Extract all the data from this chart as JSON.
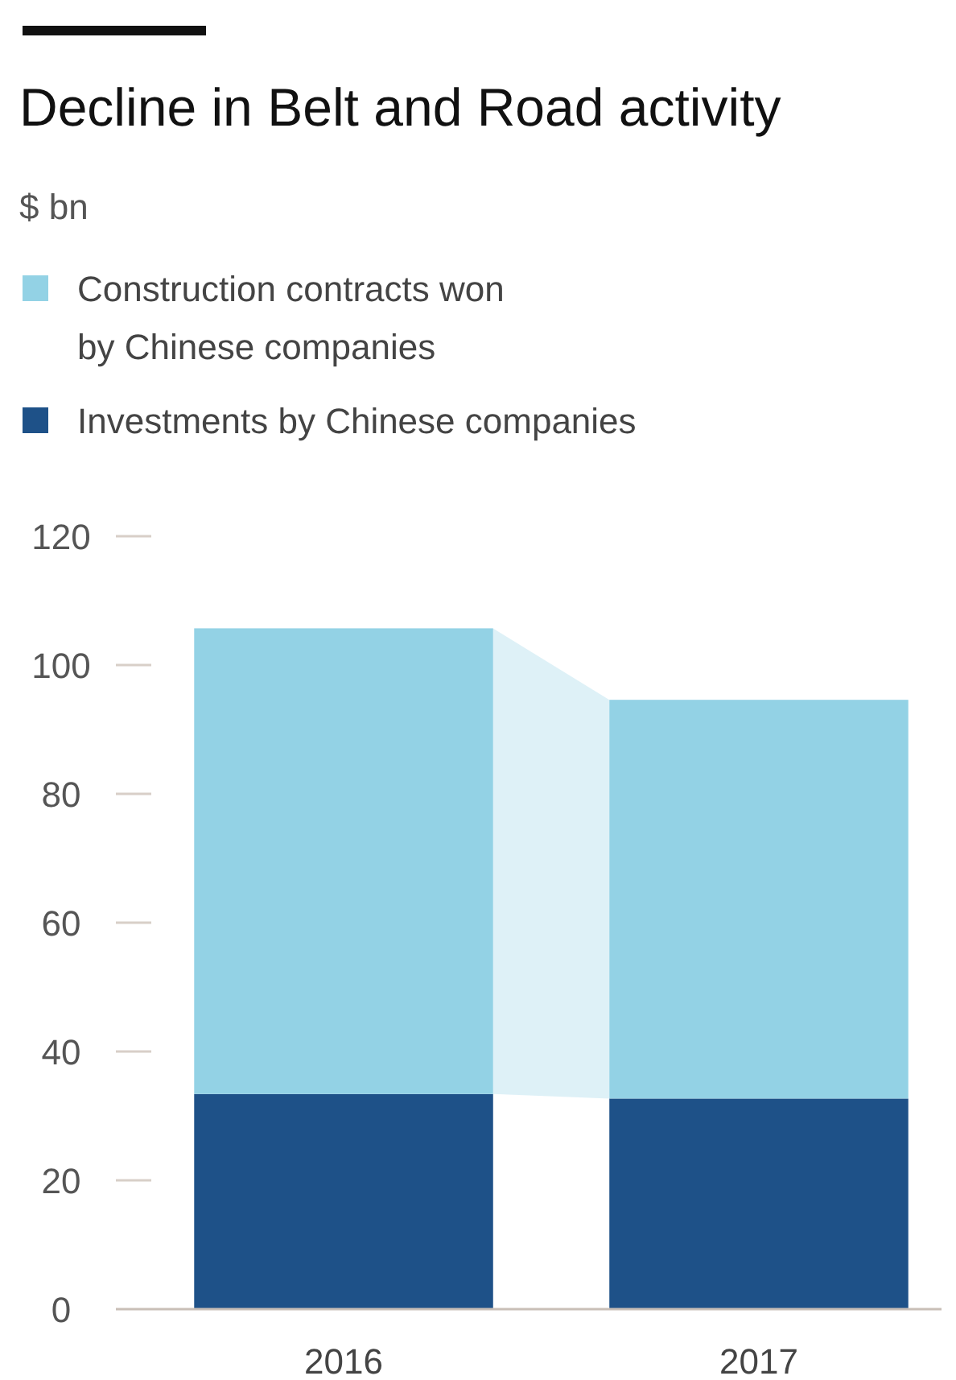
{
  "chart_data": {
    "type": "bar",
    "title": "Decline in Belt and Road activity",
    "annotations": [
      "$ bn"
    ],
    "categories": [
      "2016",
      "2017"
    ],
    "stacked": true,
    "legend": "top",
    "grid": false,
    "series": [
      {
        "name": "Investments by Chinese companies",
        "color": "#1e5188",
        "values": [
          33.4,
          32.7
        ]
      },
      {
        "name": "Construction contracts won by Chinese companies",
        "color": "#93d2e5",
        "values": [
          72.3,
          61.9
        ]
      }
    ],
    "ylim": [
      0,
      120
    ],
    "yticks": [
      0,
      20,
      40,
      60,
      80,
      100,
      120
    ]
  }
}
